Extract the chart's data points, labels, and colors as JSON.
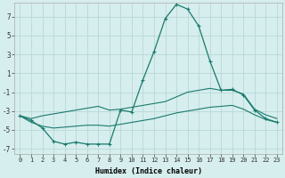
{
  "xlabel": "Humidex (Indice chaleur)",
  "background_color": "#d6eeed",
  "grid_color": "#b8d8d8",
  "line_color": "#1a7a6e",
  "x_values": [
    0,
    1,
    2,
    3,
    4,
    5,
    6,
    7,
    8,
    9,
    10,
    11,
    12,
    13,
    14,
    15,
    16,
    17,
    18,
    19,
    20,
    21,
    22,
    23
  ],
  "line_main": [
    -3.5,
    -4.0,
    -4.8,
    -6.2,
    -6.5,
    -6.3,
    -6.5,
    -6.5,
    -6.5,
    -2.9,
    -3.1,
    0.3,
    3.3,
    6.8,
    8.3,
    7.8,
    6.0,
    2.3,
    -0.8,
    -0.7,
    -1.3,
    -2.9,
    -3.8,
    -4.2
  ],
  "line_upper": [
    -3.5,
    -3.8,
    -3.5,
    -3.3,
    -3.1,
    -2.9,
    -2.7,
    -2.5,
    -2.9,
    -2.8,
    -2.6,
    -2.4,
    -2.2,
    -2.0,
    -1.5,
    -1.0,
    -0.8,
    -0.6,
    -0.8,
    -0.8,
    -1.2,
    -2.8,
    -3.4,
    -3.8
  ],
  "line_lower": [
    -3.5,
    -4.2,
    -4.6,
    -4.8,
    -4.7,
    -4.6,
    -4.5,
    -4.5,
    -4.6,
    -4.4,
    -4.2,
    -4.0,
    -3.8,
    -3.5,
    -3.2,
    -3.0,
    -2.8,
    -2.6,
    -2.5,
    -2.4,
    -2.8,
    -3.4,
    -3.9,
    -4.2
  ],
  "xlim": [
    -0.5,
    23.5
  ],
  "ylim": [
    -7.5,
    8.5
  ],
  "yticks": [
    -7,
    -5,
    -3,
    -1,
    1,
    3,
    5,
    7
  ],
  "xticks": [
    0,
    1,
    2,
    3,
    4,
    5,
    6,
    7,
    8,
    9,
    10,
    11,
    12,
    13,
    14,
    15,
    16,
    17,
    18,
    19,
    20,
    21,
    22,
    23
  ]
}
